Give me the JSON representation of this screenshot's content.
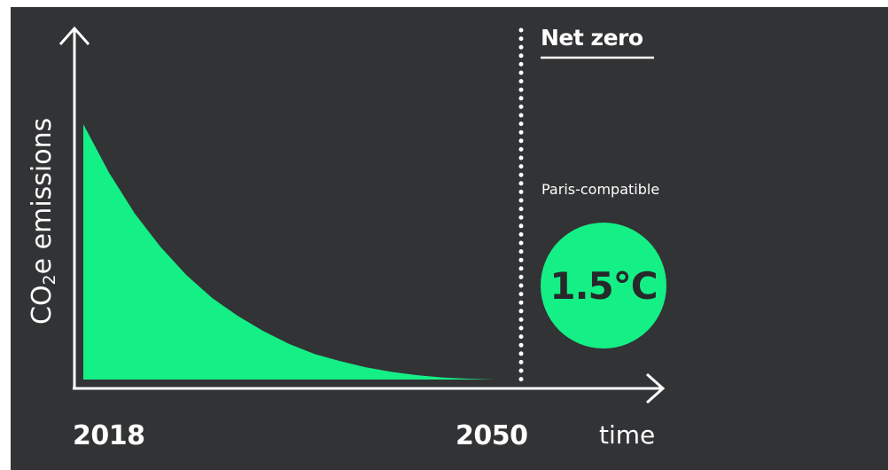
{
  "colors": {
    "background": "#323335",
    "accent": "#14f086",
    "text": "#ffffff"
  },
  "chart_data": {
    "type": "area",
    "xlabel": "time",
    "ylabel_parts": [
      "CO",
      "2",
      "e emissions"
    ],
    "x_tick_labels": [
      "2018",
      "2050"
    ],
    "x_range": [
      2018,
      2050
    ],
    "series": [
      {
        "x": [
          2018,
          2020,
          2022,
          2024,
          2026,
          2028,
          2030,
          2032,
          2034,
          2036,
          2038,
          2040,
          2042,
          2044,
          2046,
          2048,
          2050
        ],
        "values": [
          1.0,
          0.81,
          0.65,
          0.52,
          0.41,
          0.32,
          0.25,
          0.19,
          0.14,
          0.1,
          0.072,
          0.048,
          0.03,
          0.017,
          0.008,
          0.003,
          0.0
        ]
      }
    ],
    "y_axis_labels_shown": false,
    "grid": false,
    "legend": "none",
    "annotations": {
      "net_zero_label": "Net zero",
      "paris_label": "Paris-compatible",
      "temperature_label": "1.5°C"
    }
  }
}
